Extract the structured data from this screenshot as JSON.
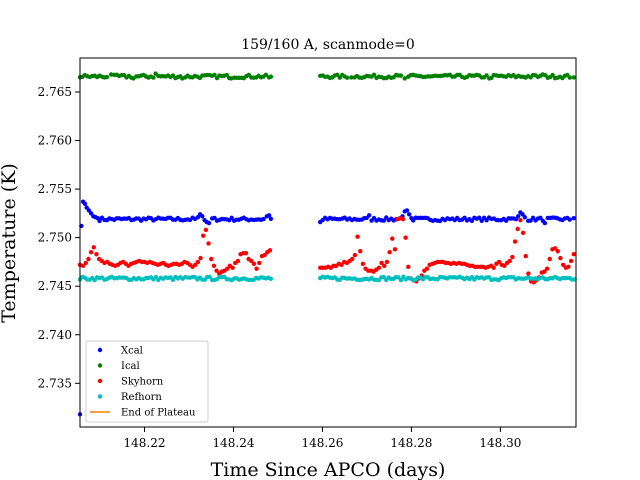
{
  "chart_data": {
    "type": "scatter",
    "title": "159/160 A, scanmode=0",
    "xlabel": "Time Since APCO (days)",
    "ylabel": "Temperature (K)",
    "xlim": [
      148.2055,
      148.317
    ],
    "ylim": [
      2.7305,
      2.7685
    ],
    "xticks": [
      148.22,
      148.24,
      148.26,
      148.28,
      148.3
    ],
    "xtick_labels": [
      "148.22",
      "148.24",
      "148.26",
      "148.28",
      "148.30"
    ],
    "yticks": [
      2.735,
      2.74,
      2.745,
      2.75,
      2.755,
      2.76,
      2.765
    ],
    "ytick_labels": [
      "2.735",
      "2.740",
      "2.745",
      "2.750",
      "2.755",
      "2.760",
      "2.765"
    ],
    "legend_position": "lower-left",
    "gap": [
      148.2485,
      148.2595
    ],
    "series": [
      {
        "name": "Xcal",
        "color": "#0000ff",
        "marker": "dot",
        "segments": [
          {
            "x0": 148.2055,
            "x1": 148.2485,
            "base": 2.7519,
            "points": [
              [
                148.2055,
                2.7318
              ],
              [
                148.2058,
                2.7512
              ],
              [
                148.2062,
                2.7537
              ],
              [
                148.2066,
                2.7535
              ],
              [
                148.207,
                2.7531
              ],
              [
                148.2075,
                2.7528
              ],
              [
                148.208,
                2.7525
              ],
              [
                148.2085,
                2.7522
              ],
              [
                148.209,
                2.7521
              ],
              [
                148.2095,
                2.752
              ],
              [
                148.232,
                2.7521
              ],
              [
                148.2325,
                2.7524
              ],
              [
                148.233,
                2.7522
              ],
              [
                148.2335,
                2.7518
              ],
              [
                148.234,
                2.7516
              ],
              [
                148.2345,
                2.7515
              ],
              [
                148.2475,
                2.7522
              ],
              [
                148.248,
                2.7523
              ]
            ]
          },
          {
            "x0": 148.2595,
            "x1": 148.317,
            "base": 2.7519,
            "points": [
              [
                148.2595,
                2.7516
              ],
              [
                148.2705,
                2.7523
              ],
              [
                148.278,
                2.7522
              ],
              [
                148.2785,
                2.7527
              ],
              [
                148.279,
                2.7528
              ],
              [
                148.2795,
                2.7524
              ],
              [
                148.28,
                2.752
              ],
              [
                148.304,
                2.7522
              ],
              [
                148.3045,
                2.7526
              ],
              [
                148.305,
                2.7524
              ],
              [
                148.3055,
                2.7521
              ],
              [
                148.31,
                2.7515
              ],
              [
                148.3165,
                2.752
              ]
            ]
          }
        ]
      },
      {
        "name": "Ical",
        "color": "#008000",
        "marker": "dot",
        "segments": [
          {
            "x0": 148.2055,
            "x1": 148.2485,
            "base": 2.7666,
            "points": [
              [
                148.2125,
                2.7668
              ],
              [
                148.2175,
                2.7664
              ],
              [
                148.2225,
                2.7669
              ],
              [
                148.2285,
                2.7664
              ],
              [
                148.2395,
                2.7664
              ],
              [
                148.248,
                2.7665
              ]
            ]
          },
          {
            "x0": 148.2595,
            "x1": 148.317,
            "base": 2.7666,
            "points": [
              [
                148.2665,
                2.7665
              ],
              [
                148.2785,
                2.7664
              ],
              [
                148.2975,
                2.7664
              ],
              [
                148.3095,
                2.7668
              ],
              [
                148.3165,
                2.7665
              ]
            ]
          }
        ]
      },
      {
        "name": "Skyhorn",
        "color": "#ff0000",
        "marker": "dot",
        "segments": [
          {
            "x0": 148.2055,
            "x1": 148.2485,
            "base": 2.7473,
            "points": [
              [
                148.2055,
                2.7472
              ],
              [
                148.2062,
                2.7471
              ],
              [
                148.2068,
                2.7474
              ],
              [
                148.2074,
                2.7478
              ],
              [
                148.208,
                2.7485
              ],
              [
                148.2086,
                2.749
              ],
              [
                148.2092,
                2.7483
              ],
              [
                148.2098,
                2.7478
              ],
              [
                148.2104,
                2.7476
              ],
              [
                148.211,
                2.7474
              ],
              [
                148.2116,
                2.7475
              ],
              [
                148.2122,
                2.7473
              ],
              [
                148.2128,
                2.7472
              ],
              [
                148.2134,
                2.7471
              ],
              [
                148.214,
                2.7472
              ],
              [
                148.2146,
                2.7474
              ],
              [
                148.2152,
                2.7475
              ],
              [
                148.2158,
                2.7473
              ],
              [
                148.2164,
                2.7471
              ],
              [
                148.217,
                2.7473
              ],
              [
                148.2176,
                2.7474
              ],
              [
                148.2182,
                2.7475
              ],
              [
                148.2188,
                2.7476
              ],
              [
                148.2194,
                2.7475
              ],
              [
                148.22,
                2.7475
              ],
              [
                148.2206,
                2.7474
              ],
              [
                148.2212,
                2.7475
              ],
              [
                148.2218,
                2.7474
              ],
              [
                148.2224,
                2.7473
              ],
              [
                148.223,
                2.7472
              ],
              [
                148.2236,
                2.7473
              ],
              [
                148.2242,
                2.7474
              ],
              [
                148.2248,
                2.7472
              ],
              [
                148.2254,
                2.7471
              ],
              [
                148.226,
                2.7472
              ],
              [
                148.2266,
                2.7473
              ],
              [
                148.2272,
                2.7473
              ],
              [
                148.2278,
                2.7472
              ],
              [
                148.2284,
                2.7473
              ],
              [
                148.229,
                2.7475
              ],
              [
                148.2296,
                2.7474
              ],
              [
                148.2302,
                2.7472
              ],
              [
                148.2308,
                2.747
              ],
              [
                148.2314,
                2.7472
              ],
              [
                148.232,
                2.7475
              ],
              [
                148.2326,
                2.7479
              ],
              [
                148.2332,
                2.7502
              ],
              [
                148.2338,
                2.7508
              ],
              [
                148.2344,
                2.7494
              ],
              [
                148.235,
                2.7478
              ],
              [
                148.2356,
                2.7471
              ],
              [
                148.2362,
                2.7466
              ],
              [
                148.2368,
                2.7463
              ],
              [
                148.2374,
                2.7465
              ],
              [
                148.238,
                2.7466
              ],
              [
                148.2386,
                2.7468
              ],
              [
                148.2392,
                2.7471
              ],
              [
                148.2398,
                2.7469
              ],
              [
                148.2404,
                2.7474
              ],
              [
                148.241,
                2.7476
              ],
              [
                148.2416,
                2.7483
              ],
              [
                148.2422,
                2.7484
              ],
              [
                148.2428,
                2.7484
              ],
              [
                148.2434,
                2.7478
              ],
              [
                148.244,
                2.7476
              ],
              [
                148.2446,
                2.7473
              ],
              [
                148.2452,
                2.7468
              ],
              [
                148.2458,
                2.7474
              ],
              [
                148.2464,
                2.7481
              ],
              [
                148.247,
                2.7482
              ],
              [
                148.2476,
                2.7485
              ],
              [
                148.2482,
                2.7487
              ]
            ]
          },
          {
            "x0": 148.2595,
            "x1": 148.317,
            "base": 2.7473,
            "points": [
              [
                148.2595,
                2.7469
              ],
              [
                148.2601,
                2.7469
              ],
              [
                148.2607,
                2.7469
              ],
              [
                148.2613,
                2.747
              ],
              [
                148.2619,
                2.7469
              ],
              [
                148.2625,
                2.7471
              ],
              [
                148.2631,
                2.7471
              ],
              [
                148.2637,
                2.7473
              ],
              [
                148.2643,
                2.7472
              ],
              [
                148.2649,
                2.7475
              ],
              [
                148.2655,
                2.7474
              ],
              [
                148.2661,
                2.7476
              ],
              [
                148.2667,
                2.7478
              ],
              [
                148.2673,
                2.7482
              ],
              [
                148.2679,
                2.7501
              ],
              [
                148.2685,
                2.7486
              ],
              [
                148.2691,
                2.7473
              ],
              [
                148.2697,
                2.7468
              ],
              [
                148.2703,
                2.7466
              ],
              [
                148.2709,
                2.7466
              ],
              [
                148.2715,
                2.7465
              ],
              [
                148.2721,
                2.7467
              ],
              [
                148.2727,
                2.7469
              ],
              [
                148.2733,
                2.7474
              ],
              [
                148.2739,
                2.7471
              ],
              [
                148.2745,
                2.7475
              ],
              [
                148.2751,
                2.7485
              ],
              [
                148.2757,
                2.7499
              ],
              [
                148.2763,
                2.7488
              ],
              [
                148.2769,
                2.7519
              ],
              [
                148.2775,
                2.752
              ],
              [
                148.2781,
                2.7519
              ],
              [
                148.2787,
                2.75
              ],
              [
                148.2793,
                2.747
              ],
              [
                148.2799,
                2.7458
              ],
              [
                148.2805,
                2.7456
              ],
              [
                148.2811,
                2.7455
              ],
              [
                148.2817,
                2.7458
              ],
              [
                148.2823,
                2.7461
              ],
              [
                148.2829,
                2.7466
              ],
              [
                148.2835,
                2.7468
              ],
              [
                148.2841,
                2.7472
              ],
              [
                148.2847,
                2.7473
              ],
              [
                148.2853,
                2.7474
              ],
              [
                148.2859,
                2.7475
              ],
              [
                148.2865,
                2.7475
              ],
              [
                148.2871,
                2.7475
              ],
              [
                148.2877,
                2.7474
              ],
              [
                148.2883,
                2.7474
              ],
              [
                148.2889,
                2.7473
              ],
              [
                148.2895,
                2.7474
              ],
              [
                148.2901,
                2.7473
              ],
              [
                148.2907,
                2.7474
              ],
              [
                148.2913,
                2.7473
              ],
              [
                148.2919,
                2.7473
              ],
              [
                148.2925,
                2.7472
              ],
              [
                148.2931,
                2.7471
              ],
              [
                148.2937,
                2.7471
              ],
              [
                148.2943,
                2.747
              ],
              [
                148.2949,
                2.747
              ],
              [
                148.2955,
                2.747
              ],
              [
                148.2961,
                2.747
              ],
              [
                148.2967,
                2.7469
              ],
              [
                148.2973,
                2.747
              ],
              [
                148.2979,
                2.7471
              ],
              [
                148.2985,
                2.7469
              ],
              [
                148.2991,
                2.7473
              ],
              [
                148.2997,
                2.7475
              ],
              [
                148.3003,
                2.7472
              ],
              [
                148.3009,
                2.7471
              ],
              [
                148.3015,
                2.7474
              ],
              [
                148.3021,
                2.7476
              ],
              [
                148.3027,
                2.748
              ],
              [
                148.3033,
                2.7496
              ],
              [
                148.3039,
                2.7509
              ],
              [
                148.3045,
                2.7518
              ],
              [
                148.3051,
                2.7505
              ],
              [
                148.3057,
                2.7481
              ],
              [
                148.3063,
                2.7463
              ],
              [
                148.3069,
                2.7455
              ],
              [
                148.3075,
                2.7454
              ],
              [
                148.3081,
                2.7456
              ],
              [
                148.3087,
                2.7459
              ],
              [
                148.3093,
                2.7464
              ],
              [
                148.3099,
                2.7465
              ],
              [
                148.3105,
                2.7468
              ],
              [
                148.3111,
                2.7478
              ],
              [
                148.3117,
                2.7488
              ],
              [
                148.3123,
                2.7489
              ],
              [
                148.3129,
                2.7486
              ],
              [
                148.3135,
                2.7479
              ],
              [
                148.3141,
                2.7472
              ],
              [
                148.3147,
                2.7469
              ],
              [
                148.3153,
                2.747
              ],
              [
                148.3159,
                2.7476
              ],
              [
                148.3165,
                2.7483
              ]
            ]
          }
        ]
      },
      {
        "name": "Refhorn",
        "color": "#00bfbf",
        "marker": "dot",
        "segments": [
          {
            "x0": 148.2055,
            "x1": 148.2485,
            "base": 2.7458,
            "points": []
          },
          {
            "x0": 148.2595,
            "x1": 148.317,
            "base": 2.7458,
            "points": []
          }
        ]
      },
      {
        "name": "End of Plateau",
        "color": "#ff7f0e",
        "marker": "line",
        "segments": []
      }
    ]
  }
}
